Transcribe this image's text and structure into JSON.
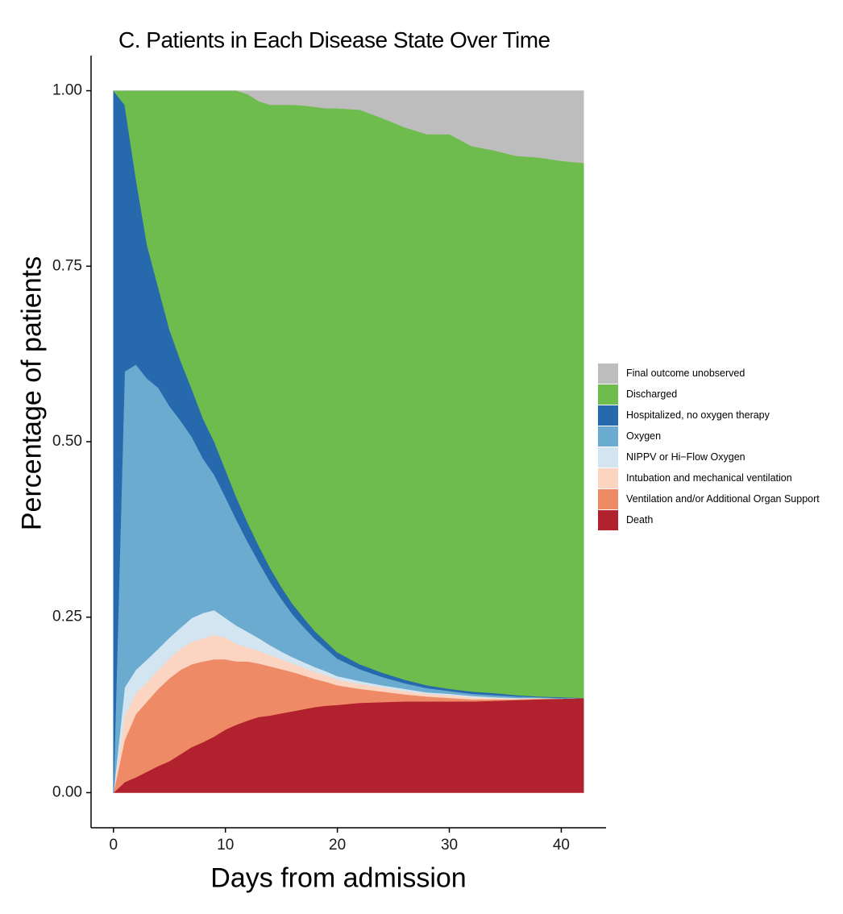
{
  "chart_data": {
    "type": "area",
    "stacked": true,
    "title": "C. Patients in Each Disease State Over Time",
    "xlabel": "Days from admission",
    "ylabel": "Percentage of patients",
    "xlim": [
      -2,
      44
    ],
    "ylim": [
      -0.05,
      1.05
    ],
    "x_ticks": [
      0,
      10,
      20,
      30,
      40
    ],
    "x_tick_labels": [
      "0",
      "10",
      "20",
      "30",
      "40"
    ],
    "y_ticks": [
      0,
      0.25,
      0.5,
      0.75,
      1.0
    ],
    "y_tick_labels": [
      "0.00",
      "0.25",
      "0.50",
      "0.75",
      "1.00"
    ],
    "grid": false,
    "legend_position": "right",
    "x": [
      0,
      1,
      2,
      3,
      4,
      5,
      6,
      7,
      8,
      9,
      10,
      11,
      12,
      13,
      14,
      15,
      16,
      17,
      18,
      19,
      20,
      22,
      24,
      26,
      28,
      30,
      32,
      34,
      36,
      38,
      40,
      42
    ],
    "series": [
      {
        "name": "Death",
        "color": "#B2222E",
        "values": [
          0.0,
          0.015,
          0.022,
          0.03,
          0.038,
          0.045,
          0.055,
          0.065,
          0.072,
          0.08,
          0.09,
          0.097,
          0.103,
          0.108,
          0.11,
          0.113,
          0.116,
          0.119,
          0.122,
          0.124,
          0.125,
          0.128,
          0.129,
          0.13,
          0.13,
          0.13,
          0.13,
          0.131,
          0.132,
          0.133,
          0.134,
          0.135
        ]
      },
      {
        "name": "Ventilation and/or Additional Organ Support",
        "color": "#EE8A66",
        "values": [
          0.0,
          0.06,
          0.09,
          0.1,
          0.11,
          0.118,
          0.12,
          0.118,
          0.115,
          0.11,
          0.1,
          0.09,
          0.084,
          0.076,
          0.07,
          0.063,
          0.056,
          0.048,
          0.04,
          0.034,
          0.028,
          0.02,
          0.015,
          0.01,
          0.007,
          0.005,
          0.003,
          0.002,
          0.001,
          0.001,
          0.0,
          0.0
        ]
      },
      {
        "name": "Intubation and mechanical ventilation",
        "color": "#FBD5C2",
        "values": [
          0.0,
          0.035,
          0.03,
          0.028,
          0.027,
          0.028,
          0.03,
          0.032,
          0.033,
          0.035,
          0.031,
          0.025,
          0.02,
          0.018,
          0.016,
          0.014,
          0.012,
          0.011,
          0.01,
          0.009,
          0.008,
          0.007,
          0.006,
          0.005,
          0.004,
          0.004,
          0.003,
          0.002,
          0.001,
          0.001,
          0.0,
          0.0
        ]
      },
      {
        "name": "NIPPV or Hi−Flow Oxygen",
        "color": "#D2E5F0",
        "values": [
          0.0,
          0.04,
          0.033,
          0.032,
          0.03,
          0.03,
          0.03,
          0.034,
          0.036,
          0.035,
          0.028,
          0.026,
          0.022,
          0.018,
          0.014,
          0.011,
          0.009,
          0.008,
          0.007,
          0.006,
          0.005,
          0.004,
          0.003,
          0.003,
          0.002,
          0.002,
          0.002,
          0.001,
          0.001,
          0.0,
          0.0,
          0.0
        ]
      },
      {
        "name": "Oxygen",
        "color": "#6AABCF",
        "values": [
          0.0,
          0.45,
          0.435,
          0.4,
          0.372,
          0.33,
          0.295,
          0.258,
          0.22,
          0.193,
          0.172,
          0.15,
          0.128,
          0.108,
          0.09,
          0.075,
          0.061,
          0.05,
          0.04,
          0.032,
          0.025,
          0.017,
          0.012,
          0.008,
          0.006,
          0.004,
          0.003,
          0.003,
          0.002,
          0.001,
          0.001,
          0.0
        ]
      },
      {
        "name": "Hospitalized, no oxygen therapy",
        "color": "#2769AD",
        "values": [
          1.0,
          0.38,
          0.265,
          0.19,
          0.143,
          0.109,
          0.085,
          0.068,
          0.057,
          0.047,
          0.039,
          0.032,
          0.027,
          0.023,
          0.02,
          0.017,
          0.015,
          0.013,
          0.011,
          0.01,
          0.009,
          0.007,
          0.006,
          0.005,
          0.004,
          0.003,
          0.003,
          0.003,
          0.002,
          0.001,
          0.001,
          0.0
        ]
      },
      {
        "name": "Discharged",
        "color": "#6EBB4E",
        "values": [
          0.0,
          0.02,
          0.125,
          0.22,
          0.28,
          0.34,
          0.385,
          0.425,
          0.467,
          0.5,
          0.54,
          0.58,
          0.611,
          0.634,
          0.66,
          0.687,
          0.711,
          0.73,
          0.747,
          0.76,
          0.775,
          0.79,
          0.79,
          0.787,
          0.785,
          0.79,
          0.777,
          0.773,
          0.768,
          0.768,
          0.764,
          0.762
        ]
      },
      {
        "name": "Final outcome unobserved",
        "color": "#BDBDBD",
        "values": [
          0.0,
          0.0,
          0.0,
          0.0,
          0.0,
          0.0,
          0.0,
          0.0,
          0.0,
          0.0,
          0.0,
          0.0,
          0.005,
          0.015,
          0.02,
          0.02,
          0.02,
          0.021,
          0.023,
          0.025,
          0.025,
          0.027,
          0.039,
          0.052,
          0.062,
          0.062,
          0.079,
          0.085,
          0.093,
          0.095,
          0.1,
          0.103
        ]
      }
    ],
    "legend_order": [
      "Final outcome unobserved",
      "Discharged",
      "Hospitalized, no oxygen therapy",
      "Oxygen",
      "NIPPV or Hi−Flow Oxygen",
      "Intubation and mechanical ventilation",
      "Ventilation and/or Additional Organ Support",
      "Death"
    ]
  }
}
